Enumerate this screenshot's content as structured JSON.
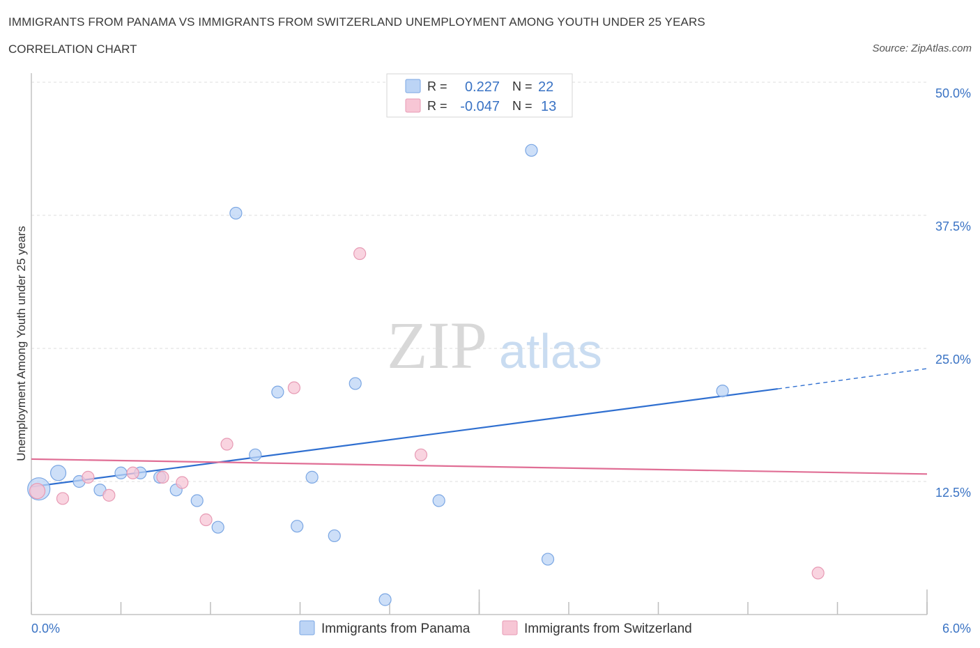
{
  "header": {
    "title": "IMMIGRANTS FROM PANAMA VS IMMIGRANTS FROM SWITZERLAND UNEMPLOYMENT AMONG YOUTH UNDER 25 YEARS",
    "subtitle": "CORRELATION CHART",
    "source": "Source: ZipAtlas.com"
  },
  "watermark": {
    "zip": "ZIP",
    "atlas": "atlas"
  },
  "colors": {
    "panama": "#5b8fd9",
    "panama_fill": "#bcd4f5",
    "switzerland": "#e06e95",
    "switzerland_fill": "#f7c6d5",
    "tick_text": "#3a73c4"
  },
  "legend_top": {
    "rows": [
      {
        "r_label": "R =",
        "r_value": "0.227",
        "n_label": "N =",
        "n_value": "22"
      },
      {
        "r_label": "R =",
        "r_value": "-0.047",
        "n_label": "N =",
        "n_value": "13"
      }
    ]
  },
  "legend_bottom": {
    "items": [
      {
        "label": "Immigrants from Panama"
      },
      {
        "label": "Immigrants from Switzerland"
      }
    ]
  },
  "chart_data": {
    "type": "scatter",
    "title": "IMMIGRANTS FROM PANAMA VS IMMIGRANTS FROM SWITZERLAND UNEMPLOYMENT AMONG YOUTH UNDER 25 YEARS",
    "xlabel": "",
    "ylabel": "Unemployment Among Youth under 25 years",
    "xlim": [
      0,
      6
    ],
    "ylim": [
      0,
      50
    ],
    "x_tick_labels": [
      {
        "value": 0,
        "label": "0.0%"
      },
      {
        "value": 6,
        "label": "6.0%"
      }
    ],
    "y_tick_labels": [
      {
        "value": 12.5,
        "label": "12.5%"
      },
      {
        "value": 25,
        "label": "25.0%"
      },
      {
        "value": 37.5,
        "label": "37.5%"
      },
      {
        "value": 50,
        "label": "50.0%"
      }
    ],
    "grid": true,
    "series": [
      {
        "name": "Immigrants from Panama",
        "R": 0.227,
        "N": 22,
        "points": [
          {
            "x": 0.05,
            "y": 11.8,
            "size": 3
          },
          {
            "x": 0.18,
            "y": 13.3,
            "size": 2
          },
          {
            "x": 0.32,
            "y": 12.5,
            "size": 1
          },
          {
            "x": 0.46,
            "y": 11.7,
            "size": 1
          },
          {
            "x": 0.6,
            "y": 13.3,
            "size": 1
          },
          {
            "x": 0.73,
            "y": 13.3,
            "size": 1
          },
          {
            "x": 0.86,
            "y": 12.9,
            "size": 1
          },
          {
            "x": 0.97,
            "y": 11.7,
            "size": 1
          },
          {
            "x": 1.11,
            "y": 10.7,
            "size": 1
          },
          {
            "x": 1.25,
            "y": 8.2,
            "size": 1
          },
          {
            "x": 1.37,
            "y": 37.7,
            "size": 1
          },
          {
            "x": 1.5,
            "y": 15.0,
            "size": 1
          },
          {
            "x": 1.65,
            "y": 20.9,
            "size": 1
          },
          {
            "x": 1.78,
            "y": 8.3,
            "size": 1
          },
          {
            "x": 1.88,
            "y": 12.9,
            "size": 1
          },
          {
            "x": 2.03,
            "y": 7.4,
            "size": 1
          },
          {
            "x": 2.17,
            "y": 21.7,
            "size": 1
          },
          {
            "x": 2.37,
            "y": 1.4,
            "size": 1
          },
          {
            "x": 2.73,
            "y": 10.7,
            "size": 1
          },
          {
            "x": 3.35,
            "y": 43.6,
            "size": 1
          },
          {
            "x": 3.46,
            "y": 5.2,
            "size": 1
          },
          {
            "x": 4.63,
            "y": 21.0,
            "size": 1
          }
        ],
        "trend": {
          "x0": 0,
          "y0": 12.0,
          "x1": 5.0,
          "y1": 21.2,
          "dashed_to_x": 6.0,
          "dashed_to_y": 23.1
        }
      },
      {
        "name": "Immigrants from Switzerland",
        "R": -0.047,
        "N": 13,
        "points": [
          {
            "x": 0.04,
            "y": 11.6,
            "size": 2
          },
          {
            "x": 0.21,
            "y": 10.9,
            "size": 1
          },
          {
            "x": 0.38,
            "y": 12.9,
            "size": 1
          },
          {
            "x": 0.52,
            "y": 11.2,
            "size": 1
          },
          {
            "x": 0.68,
            "y": 13.3,
            "size": 1
          },
          {
            "x": 0.88,
            "y": 12.9,
            "size": 1
          },
          {
            "x": 1.01,
            "y": 12.4,
            "size": 1
          },
          {
            "x": 1.17,
            "y": 8.9,
            "size": 1
          },
          {
            "x": 1.31,
            "y": 16.0,
            "size": 1
          },
          {
            "x": 1.76,
            "y": 21.3,
            "size": 1
          },
          {
            "x": 2.2,
            "y": 33.9,
            "size": 1
          },
          {
            "x": 2.61,
            "y": 15.0,
            "size": 1
          },
          {
            "x": 5.27,
            "y": 3.9,
            "size": 1
          }
        ],
        "trend": {
          "x0": 0,
          "y0": 14.6,
          "x1": 6.0,
          "y1": 13.2
        }
      }
    ]
  }
}
